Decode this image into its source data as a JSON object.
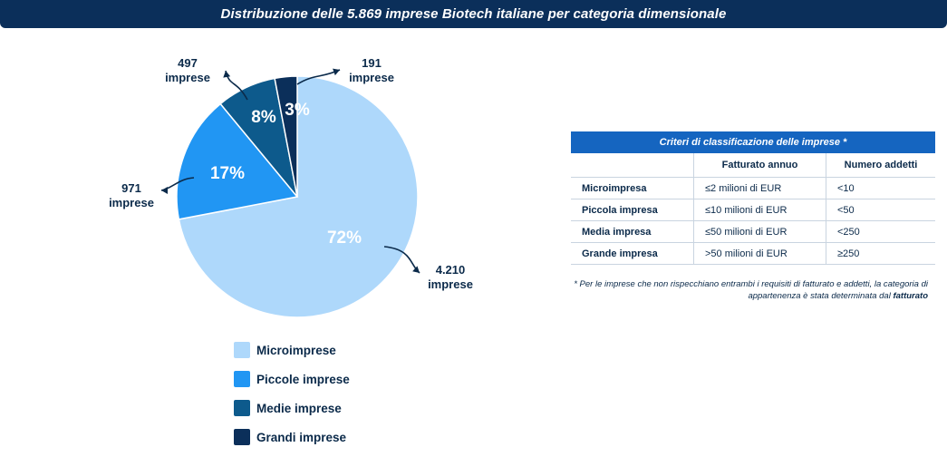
{
  "header": {
    "title": "Distribuzione delle 5.869 imprese Biotech italiane per categoria dimensionale"
  },
  "chart_data": {
    "type": "pie",
    "title": "Distribuzione delle 5.869 imprese Biotech italiane per categoria dimensionale",
    "total": 5869,
    "slices": [
      {
        "name": "Microimprese",
        "percent": 72,
        "percent_label": "72%",
        "count_line1": "4.210",
        "count_line2": "imprese",
        "color": "#aed8fb"
      },
      {
        "name": "Piccole imprese",
        "percent": 17,
        "percent_label": "17%",
        "count_line1": "971",
        "count_line2": "imprese",
        "color": "#2196f3"
      },
      {
        "name": "Medie imprese",
        "percent": 8,
        "percent_label": "8%",
        "count_line1": "497",
        "count_line2": "imprese",
        "color": "#0d5a8c"
      },
      {
        "name": "Grandi imprese",
        "percent": 3,
        "percent_label": "3%",
        "count_line1": "191",
        "count_line2": "imprese",
        "color": "#0b2f5a"
      }
    ],
    "legend_position": "bottom"
  },
  "legend": {
    "items": [
      {
        "label": "Microimprese",
        "color": "#aed8fb"
      },
      {
        "label": "Piccole imprese",
        "color": "#2196f3"
      },
      {
        "label": "Medie imprese",
        "color": "#0d5a8c"
      },
      {
        "label": "Grandi imprese",
        "color": "#0b2f5a"
      }
    ]
  },
  "criteria": {
    "title": "Criteri di classificazione delle imprese *",
    "columns": [
      "",
      "Fatturato annuo",
      "Numero addetti"
    ],
    "rows": [
      {
        "category": "Microimpresa",
        "revenue": "≤2 milioni di EUR",
        "employees": "<10"
      },
      {
        "category": "Piccola impresa",
        "revenue": "≤10 milioni di EUR",
        "employees": "<50"
      },
      {
        "category": "Media impresa",
        "revenue": "≤50 milioni di EUR",
        "employees": "<250"
      },
      {
        "category": "Grande impresa",
        "revenue": ">50 milioni di EUR",
        "employees": "≥250"
      }
    ],
    "note_main": "* Per le imprese che non rispecchiano entrambi i requisiti di fatturato e addetti, la categoria di appartenenza è stata determinata dal",
    "note_bold": "fatturato"
  }
}
